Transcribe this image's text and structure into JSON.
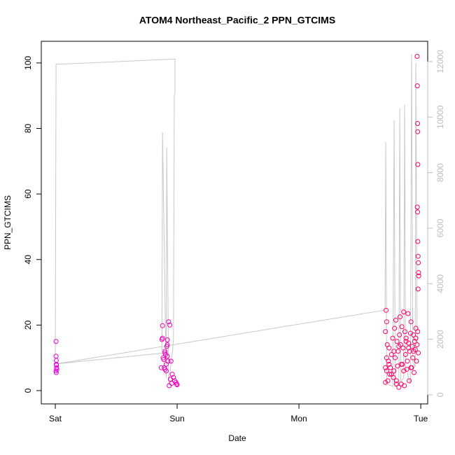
{
  "chart_data": {
    "type": "scatter",
    "title": "ATOM4 Northeast_Pacific_2 PPN_GTCIMS",
    "xlabel": "Date",
    "ylabel": "PPN_GTCIMS",
    "xlim": [
      -0.115,
      3.057
    ],
    "xticks": [
      {
        "value": 0,
        "label": "Sat"
      },
      {
        "value": 1,
        "label": "Sun"
      },
      {
        "value": 2,
        "label": "Mon"
      },
      {
        "value": 3,
        "label": "Tue"
      }
    ],
    "ylim": [
      -4.06,
      106.6
    ],
    "yticks": [
      0,
      20,
      40,
      60,
      80,
      100
    ],
    "y2lim": [
      -328,
      12730
    ],
    "y2ticks": [
      0,
      2000,
      4000,
      6000,
      8000,
      10000,
      12000
    ],
    "series": [
      {
        "type": "points",
        "colors": [
          "#e600e6",
          "#ff0060"
        ],
        "x": [
          0.006,
          0.006,
          0.008,
          0.008,
          0.01,
          0.01,
          0.012,
          0.006,
          0.008,
          0.88,
          0.88,
          0.885,
          0.89,
          0.895,
          0.9,
          0.9,
          0.905,
          0.91,
          0.915,
          0.92,
          0.93,
          0.94,
          0.95,
          0.96,
          0.97,
          0.98,
          0.99,
          0.995,
          1.0,
          0.92,
          0.92,
          0.87,
          0.875,
          0.9,
          0.91,
          0.925,
          0.935,
          0.945,
          0.955,
          2.71,
          2.71,
          2.715,
          2.72,
          2.72,
          2.725,
          2.73,
          2.735,
          2.74,
          2.745,
          2.75,
          2.76,
          2.77,
          2.775,
          2.78,
          2.785,
          2.79,
          2.795,
          2.8,
          2.805,
          2.81,
          2.815,
          2.82,
          2.825,
          2.83,
          2.835,
          2.84,
          2.845,
          2.85,
          2.855,
          2.86,
          2.865,
          2.87,
          2.875,
          2.88,
          2.885,
          2.89,
          2.895,
          2.9,
          2.905,
          2.91,
          2.915,
          2.92,
          2.925,
          2.93,
          2.935,
          2.94,
          2.945,
          2.95,
          2.955,
          2.96,
          2.965,
          2.97,
          2.975,
          2.98,
          2.71,
          2.74,
          2.78,
          2.82,
          2.86,
          2.9,
          2.94,
          2.72,
          2.76,
          2.8,
          2.84,
          2.88,
          2.92,
          2.96,
          2.97,
          2.972,
          2.974,
          2.975,
          2.976,
          2.972,
          2.974,
          2.976,
          2.978,
          2.98,
          2.982,
          2.983,
          2.978
        ],
        "values": [
          15,
          10.5,
          9.2,
          8,
          7.8,
          7,
          6.5,
          6,
          5.5,
          19.8,
          16,
          10,
          9.5,
          7,
          12,
          6.5,
          11,
          8,
          13.5,
          15.5,
          21,
          20,
          9,
          5,
          4,
          3,
          2.5,
          2,
          1.8,
          14,
          10.5,
          7,
          15.6,
          11.5,
          6,
          9,
          1.5,
          3.5,
          2.2,
          18,
          7,
          24.5,
          21,
          6,
          14,
          3,
          9,
          13,
          5,
          7,
          11,
          16,
          4,
          6,
          19,
          10,
          21.5,
          3,
          15,
          7.5,
          12,
          1,
          17,
          22.5,
          14,
          2,
          19.5,
          8,
          13,
          24,
          1.5,
          18,
          11,
          16,
          6.5,
          9,
          23.5,
          14.5,
          3,
          12,
          17.5,
          21,
          7,
          13.5,
          10,
          17,
          5.5,
          15,
          12.5,
          16,
          9,
          14,
          18,
          11.5,
          2.5,
          8,
          12,
          13.5,
          6,
          13,
          12,
          10,
          5,
          2,
          8,
          15,
          7,
          19,
          102,
          93,
          81.5,
          79,
          69,
          56,
          54.5,
          45.5,
          41,
          39,
          36,
          35,
          31
        ]
      },
      {
        "type": "line",
        "axis": "y2",
        "color": "#c8c8c8",
        "x": [
          0,
          0.006,
          0.977,
          0.983,
          0.983,
          0.977,
          0.97,
          0.96,
          0.93,
          0.915,
          0.91,
          0.88,
          0.875,
          0.003,
          2.707,
          2.713,
          2.72,
          2.77,
          2.782,
          2.79,
          2.82,
          2.828,
          2.835,
          2.86,
          2.868,
          2.875,
          2.915,
          2.925,
          2.935,
          2.955,
          2.96,
          2.97
        ],
        "values": [
          1110,
          11900,
          12090,
          12090,
          10900,
          10800,
          2000,
          1500,
          400,
          8900,
          600,
          9450,
          1500,
          1110,
          3050,
          9100,
          400,
          300,
          9880,
          300,
          400,
          10310,
          500,
          600,
          10440,
          1000,
          400,
          12275,
          1200,
          1000,
          11950,
          1500
        ]
      }
    ]
  }
}
